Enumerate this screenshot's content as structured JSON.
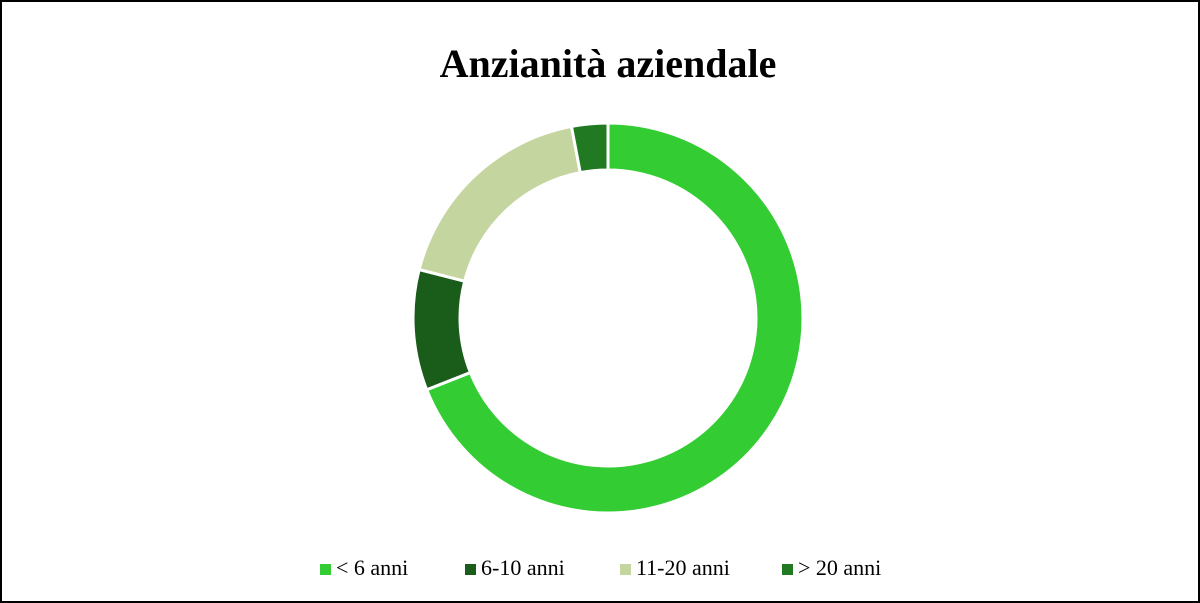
{
  "chart_data": {
    "type": "donut",
    "title": "Anzianità aziendale",
    "categories": [
      "< 6 anni",
      "6-10 anni",
      "11-20 anni",
      "> 20 anni"
    ],
    "values": [
      69,
      10,
      18,
      3
    ],
    "colors": [
      "#33cc33",
      "#1a5c1a",
      "#c5d5a0",
      "#217a21"
    ],
    "legend": "bottom"
  }
}
